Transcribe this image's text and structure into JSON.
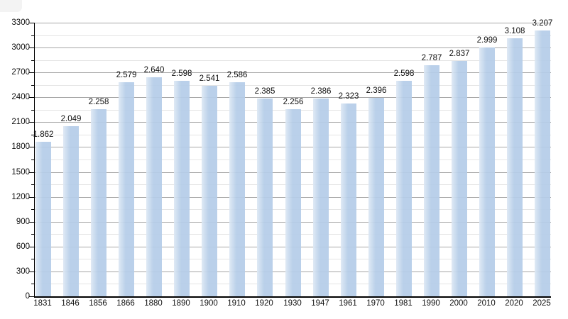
{
  "page": {
    "background": "#ffffff"
  },
  "chart_data": {
    "type": "bar",
    "title": "",
    "xlabel": "",
    "ylabel": "",
    "categories": [
      "1831",
      "1846",
      "1856",
      "1866",
      "1880",
      "1890",
      "1900",
      "1910",
      "1920",
      "1930",
      "1947",
      "1961",
      "1970",
      "1981",
      "1990",
      "2000",
      "2010",
      "2020",
      "2025"
    ],
    "values": [
      1862,
      2049,
      2258,
      2579,
      2640,
      2598,
      2541,
      2586,
      2385,
      2256,
      2386,
      2323,
      2396,
      2598,
      2787,
      2837,
      2999,
      3108,
      3207
    ],
    "value_labels": [
      "1.862",
      "2.049",
      "2.258",
      "2.579",
      "2.640",
      "2.598",
      "2.541",
      "2.586",
      "2.385",
      "2.256",
      "2.386",
      "2.323",
      "2.396",
      "2.598",
      "2.787",
      "2.837",
      "2.999",
      "3.108",
      "3.207"
    ],
    "ylim": [
      0,
      3300
    ],
    "y_major_step": 300,
    "y_minor_step": 150,
    "y_tick_labels": [
      "0",
      "300",
      "600",
      "900",
      "1200",
      "1500",
      "1800",
      "2100",
      "2400",
      "2700",
      "3000",
      "3300"
    ],
    "grid": "horizontal-major-and-minor",
    "legend": "none",
    "colors": {
      "bar": "#b5cde8",
      "bar_edge_light": "#dde8f4",
      "grid_major": "#a6a6a6",
      "grid_minor": "#e4e4e4",
      "axis": "#000000",
      "text": "#111111"
    }
  }
}
